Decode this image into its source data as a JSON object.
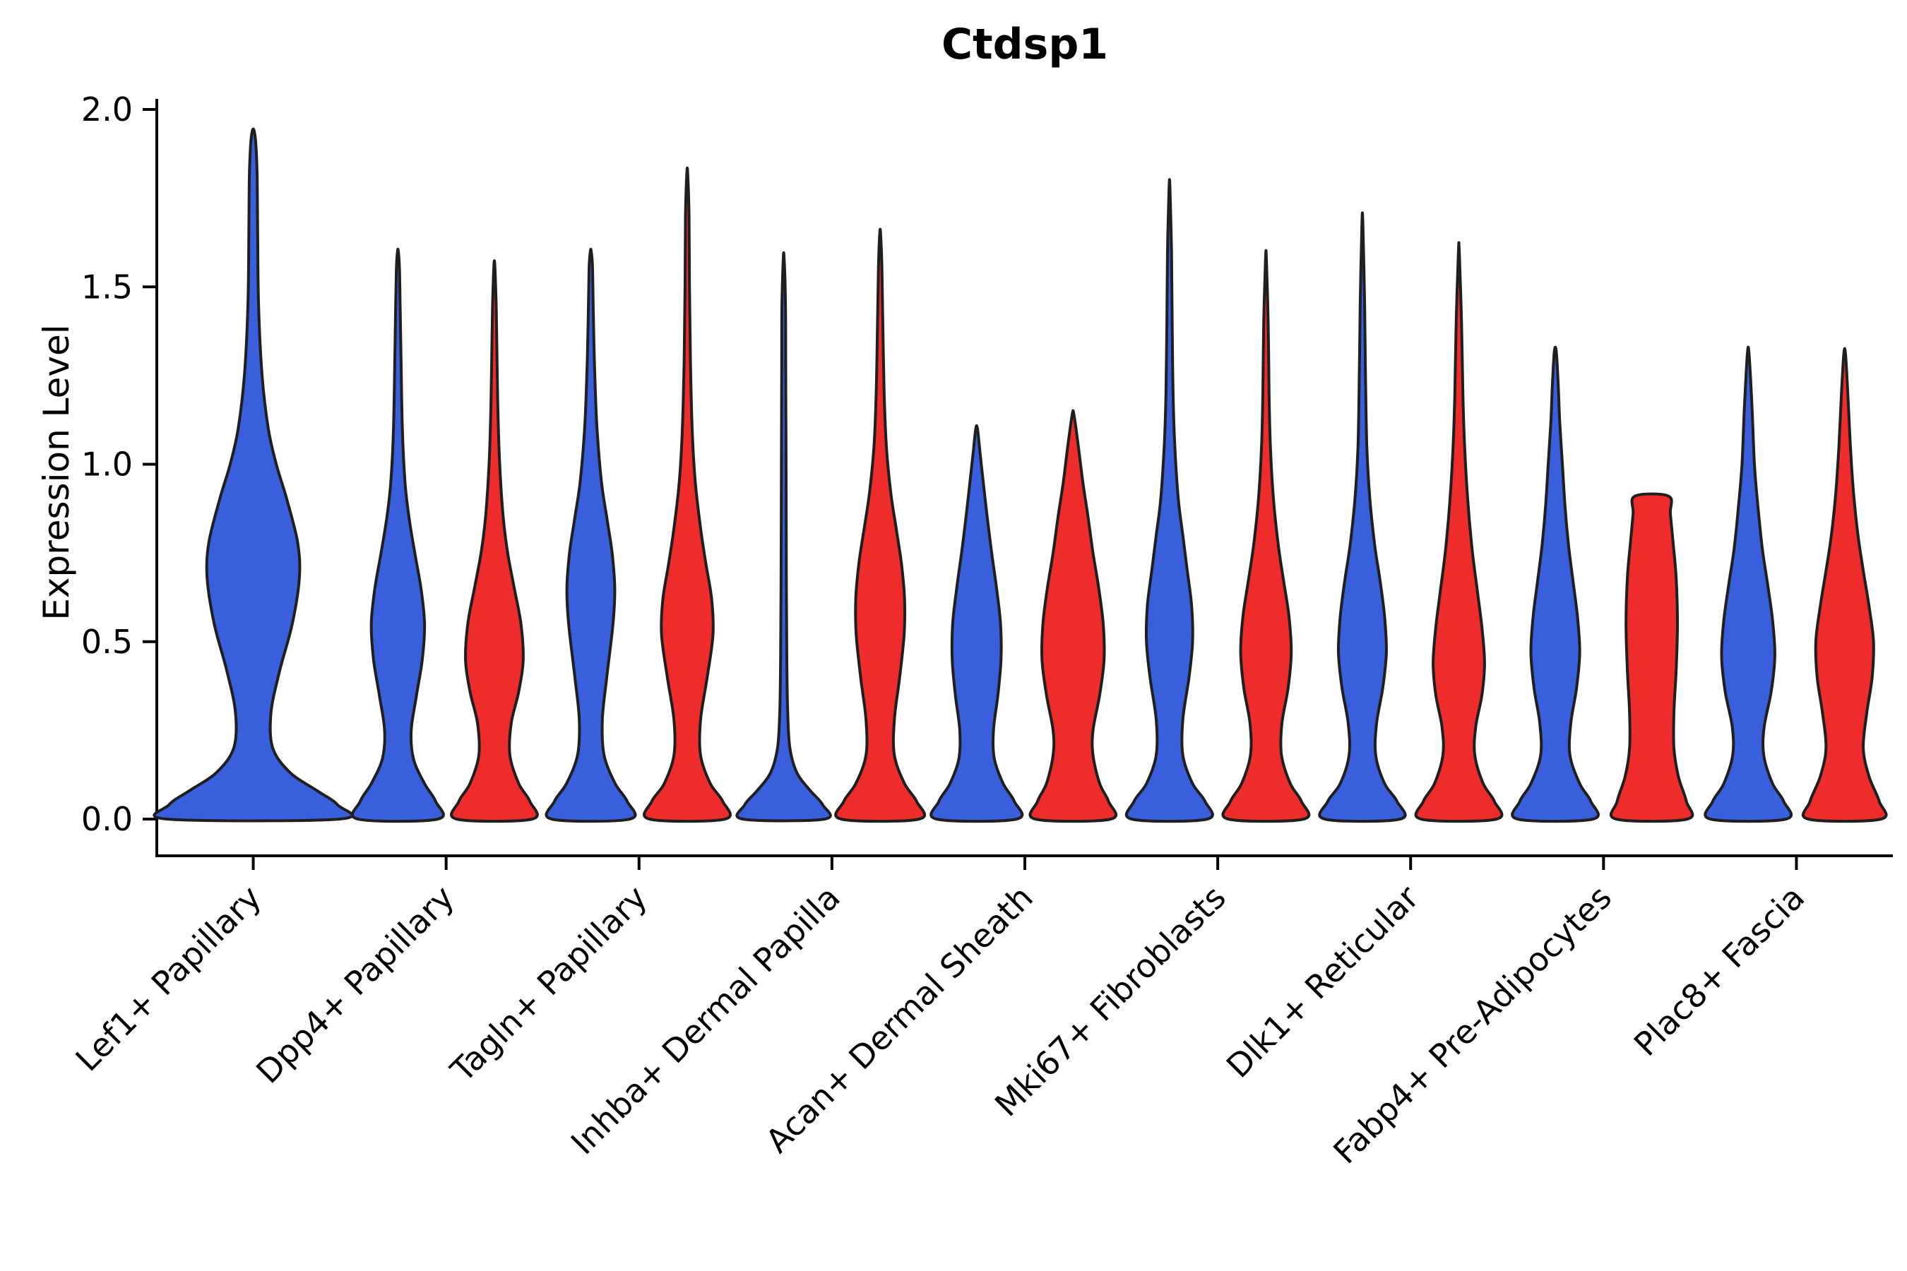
{
  "chart_data": {
    "type": "violin",
    "title": "Ctdsp1",
    "ylabel": "Expression Level",
    "xlabel": "",
    "ylim": [
      0,
      2.0
    ],
    "yticks": [
      "0.0",
      "0.5",
      "1.0",
      "1.5",
      "2.0"
    ],
    "ytick_values": [
      0,
      0.5,
      1.0,
      1.5,
      2.0
    ],
    "grid": false,
    "legend": "none",
    "colors": {
      "blue": "#3A5FDC",
      "red": "#EE2C2C",
      "outline": "#1F1F1F",
      "axis": "#000000"
    },
    "categories": [
      "Lef1+ Papillary",
      "Dpp4+ Papillary",
      "Tagln+ Papillary",
      "Inhba+ Dermal Papilla",
      "Acan+ Dermal Sheath",
      "Mki67+ Fibroblasts",
      "Dlk1+ Reticular",
      "Fabp4+ Pre-Adipocytes",
      "Plac8+ Fascia"
    ],
    "violins": [
      {
        "cat": 0,
        "group": "blue",
        "max": 1.94,
        "profile": [
          [
            0,
            0.97
          ],
          [
            0.04,
            0.95
          ],
          [
            0.08,
            0.72
          ],
          [
            0.13,
            0.42
          ],
          [
            0.2,
            0.22
          ],
          [
            0.3,
            0.2
          ],
          [
            0.42,
            0.3
          ],
          [
            0.55,
            0.44
          ],
          [
            0.68,
            0.52
          ],
          [
            0.78,
            0.5
          ],
          [
            0.9,
            0.38
          ],
          [
            1.0,
            0.26
          ],
          [
            1.1,
            0.17
          ],
          [
            1.25,
            0.1
          ],
          [
            1.45,
            0.06
          ],
          [
            1.65,
            0.05
          ],
          [
            1.8,
            0.045
          ],
          [
            1.9,
            0.03
          ],
          [
            1.94,
            0.01
          ]
        ]
      },
      {
        "cat": 1,
        "group": "blue",
        "max": 1.6,
        "profile": [
          [
            0,
            0.9
          ],
          [
            0.05,
            0.85
          ],
          [
            0.1,
            0.6
          ],
          [
            0.17,
            0.35
          ],
          [
            0.25,
            0.3
          ],
          [
            0.35,
            0.42
          ],
          [
            0.45,
            0.55
          ],
          [
            0.55,
            0.6
          ],
          [
            0.65,
            0.52
          ],
          [
            0.75,
            0.38
          ],
          [
            0.85,
            0.25
          ],
          [
            0.95,
            0.16
          ],
          [
            1.1,
            0.1
          ],
          [
            1.3,
            0.07
          ],
          [
            1.45,
            0.05
          ],
          [
            1.55,
            0.035
          ],
          [
            1.6,
            0.01
          ]
        ]
      },
      {
        "cat": 1,
        "group": "red",
        "max": 1.56,
        "profile": [
          [
            0,
            0.85
          ],
          [
            0.05,
            0.8
          ],
          [
            0.1,
            0.55
          ],
          [
            0.18,
            0.35
          ],
          [
            0.27,
            0.38
          ],
          [
            0.36,
            0.55
          ],
          [
            0.45,
            0.65
          ],
          [
            0.55,
            0.6
          ],
          [
            0.65,
            0.45
          ],
          [
            0.75,
            0.3
          ],
          [
            0.85,
            0.2
          ],
          [
            1.0,
            0.12
          ],
          [
            1.15,
            0.08
          ],
          [
            1.3,
            0.06
          ],
          [
            1.45,
            0.04
          ],
          [
            1.56,
            0.01
          ]
        ]
      },
      {
        "cat": 2,
        "group": "blue",
        "max": 1.6,
        "profile": [
          [
            0,
            0.88
          ],
          [
            0.05,
            0.82
          ],
          [
            0.1,
            0.55
          ],
          [
            0.18,
            0.3
          ],
          [
            0.28,
            0.26
          ],
          [
            0.4,
            0.36
          ],
          [
            0.55,
            0.5
          ],
          [
            0.65,
            0.54
          ],
          [
            0.75,
            0.48
          ],
          [
            0.85,
            0.36
          ],
          [
            0.95,
            0.24
          ],
          [
            1.1,
            0.14
          ],
          [
            1.25,
            0.09
          ],
          [
            1.4,
            0.06
          ],
          [
            1.55,
            0.04
          ],
          [
            1.6,
            0.01
          ]
        ]
      },
      {
        "cat": 2,
        "group": "red",
        "max": 1.82,
        "profile": [
          [
            0,
            0.85
          ],
          [
            0.05,
            0.8
          ],
          [
            0.1,
            0.52
          ],
          [
            0.18,
            0.3
          ],
          [
            0.28,
            0.3
          ],
          [
            0.4,
            0.45
          ],
          [
            0.52,
            0.58
          ],
          [
            0.62,
            0.55
          ],
          [
            0.72,
            0.42
          ],
          [
            0.82,
            0.3
          ],
          [
            0.95,
            0.18
          ],
          [
            1.1,
            0.11
          ],
          [
            1.3,
            0.07
          ],
          [
            1.5,
            0.05
          ],
          [
            1.7,
            0.04
          ],
          [
            1.82,
            0.01
          ]
        ]
      },
      {
        "cat": 3,
        "group": "blue",
        "max": 1.58,
        "profile": [
          [
            0,
            0.92
          ],
          [
            0.04,
            0.88
          ],
          [
            0.08,
            0.6
          ],
          [
            0.13,
            0.3
          ],
          [
            0.2,
            0.14
          ],
          [
            0.3,
            0.09
          ],
          [
            0.45,
            0.07
          ],
          [
            0.65,
            0.06
          ],
          [
            0.9,
            0.055
          ],
          [
            1.1,
            0.05
          ],
          [
            1.3,
            0.045
          ],
          [
            1.45,
            0.04
          ],
          [
            1.58,
            0.01
          ]
        ]
      },
      {
        "cat": 3,
        "group": "red",
        "max": 1.65,
        "profile": [
          [
            0,
            0.88
          ],
          [
            0.05,
            0.82
          ],
          [
            0.1,
            0.55
          ],
          [
            0.18,
            0.32
          ],
          [
            0.28,
            0.32
          ],
          [
            0.4,
            0.44
          ],
          [
            0.52,
            0.54
          ],
          [
            0.62,
            0.55
          ],
          [
            0.72,
            0.48
          ],
          [
            0.82,
            0.36
          ],
          [
            0.92,
            0.24
          ],
          [
            1.05,
            0.14
          ],
          [
            1.2,
            0.09
          ],
          [
            1.4,
            0.06
          ],
          [
            1.55,
            0.04
          ],
          [
            1.65,
            0.01
          ]
        ]
      },
      {
        "cat": 4,
        "group": "blue",
        "max": 1.1,
        "profile": [
          [
            0,
            0.9
          ],
          [
            0.05,
            0.85
          ],
          [
            0.1,
            0.6
          ],
          [
            0.17,
            0.4
          ],
          [
            0.25,
            0.38
          ],
          [
            0.35,
            0.48
          ],
          [
            0.45,
            0.55
          ],
          [
            0.55,
            0.54
          ],
          [
            0.65,
            0.45
          ],
          [
            0.75,
            0.34
          ],
          [
            0.85,
            0.24
          ],
          [
            0.95,
            0.15
          ],
          [
            1.03,
            0.08
          ],
          [
            1.1,
            0.02
          ]
        ]
      },
      {
        "cat": 4,
        "group": "red",
        "max": 1.14,
        "profile": [
          [
            0,
            0.85
          ],
          [
            0.05,
            0.8
          ],
          [
            0.1,
            0.6
          ],
          [
            0.18,
            0.45
          ],
          [
            0.25,
            0.45
          ],
          [
            0.35,
            0.6
          ],
          [
            0.45,
            0.7
          ],
          [
            0.55,
            0.68
          ],
          [
            0.65,
            0.58
          ],
          [
            0.75,
            0.45
          ],
          [
            0.85,
            0.34
          ],
          [
            0.95,
            0.22
          ],
          [
            1.05,
            0.12
          ],
          [
            1.14,
            0.02
          ]
        ]
      },
      {
        "cat": 5,
        "group": "blue",
        "max": 1.78,
        "profile": [
          [
            0,
            0.85
          ],
          [
            0.05,
            0.8
          ],
          [
            0.1,
            0.52
          ],
          [
            0.18,
            0.3
          ],
          [
            0.28,
            0.3
          ],
          [
            0.4,
            0.44
          ],
          [
            0.5,
            0.52
          ],
          [
            0.6,
            0.5
          ],
          [
            0.7,
            0.4
          ],
          [
            0.8,
            0.3
          ],
          [
            0.9,
            0.2
          ],
          [
            1.05,
            0.12
          ],
          [
            1.2,
            0.08
          ],
          [
            1.4,
            0.06
          ],
          [
            1.6,
            0.045
          ],
          [
            1.78,
            0.01
          ]
        ]
      },
      {
        "cat": 5,
        "group": "red",
        "max": 1.58,
        "profile": [
          [
            0,
            0.85
          ],
          [
            0.05,
            0.8
          ],
          [
            0.1,
            0.55
          ],
          [
            0.18,
            0.35
          ],
          [
            0.27,
            0.36
          ],
          [
            0.37,
            0.5
          ],
          [
            0.47,
            0.57
          ],
          [
            0.57,
            0.52
          ],
          [
            0.67,
            0.4
          ],
          [
            0.77,
            0.28
          ],
          [
            0.9,
            0.17
          ],
          [
            1.05,
            0.1
          ],
          [
            1.2,
            0.07
          ],
          [
            1.4,
            0.05
          ],
          [
            1.58,
            0.01
          ]
        ]
      },
      {
        "cat": 6,
        "group": "blue",
        "max": 1.68,
        "profile": [
          [
            0,
            0.85
          ],
          [
            0.05,
            0.78
          ],
          [
            0.1,
            0.5
          ],
          [
            0.18,
            0.3
          ],
          [
            0.27,
            0.32
          ],
          [
            0.37,
            0.46
          ],
          [
            0.47,
            0.54
          ],
          [
            0.57,
            0.5
          ],
          [
            0.67,
            0.4
          ],
          [
            0.77,
            0.28
          ],
          [
            0.9,
            0.17
          ],
          [
            1.05,
            0.1
          ],
          [
            1.25,
            0.07
          ],
          [
            1.45,
            0.05
          ],
          [
            1.68,
            0.01
          ]
        ]
      },
      {
        "cat": 6,
        "group": "red",
        "max": 1.6,
        "profile": [
          [
            0,
            0.85
          ],
          [
            0.05,
            0.8
          ],
          [
            0.1,
            0.55
          ],
          [
            0.18,
            0.36
          ],
          [
            0.26,
            0.38
          ],
          [
            0.35,
            0.52
          ],
          [
            0.44,
            0.58
          ],
          [
            0.54,
            0.52
          ],
          [
            0.64,
            0.42
          ],
          [
            0.76,
            0.3
          ],
          [
            0.9,
            0.2
          ],
          [
            1.05,
            0.13
          ],
          [
            1.2,
            0.09
          ],
          [
            1.4,
            0.06
          ],
          [
            1.6,
            0.01
          ]
        ]
      },
      {
        "cat": 7,
        "group": "blue",
        "max": 1.32,
        "profile": [
          [
            0,
            0.85
          ],
          [
            0.05,
            0.8
          ],
          [
            0.1,
            0.55
          ],
          [
            0.18,
            0.33
          ],
          [
            0.27,
            0.35
          ],
          [
            0.37,
            0.48
          ],
          [
            0.47,
            0.55
          ],
          [
            0.57,
            0.5
          ],
          [
            0.67,
            0.4
          ],
          [
            0.77,
            0.3
          ],
          [
            0.88,
            0.22
          ],
          [
            1.0,
            0.16
          ],
          [
            1.12,
            0.1
          ],
          [
            1.24,
            0.06
          ],
          [
            1.32,
            0.02
          ]
        ]
      },
      {
        "cat": 7,
        "group": "red",
        "max": 0.91,
        "profile": [
          [
            0,
            0.8
          ],
          [
            0.05,
            0.78
          ],
          [
            0.12,
            0.6
          ],
          [
            0.2,
            0.5
          ],
          [
            0.3,
            0.5
          ],
          [
            0.42,
            0.55
          ],
          [
            0.55,
            0.58
          ],
          [
            0.68,
            0.55
          ],
          [
            0.78,
            0.48
          ],
          [
            0.86,
            0.42
          ],
          [
            0.91,
            0.38
          ]
        ]
      },
      {
        "cat": 8,
        "group": "blue",
        "max": 1.31,
        "profile": [
          [
            0,
            0.85
          ],
          [
            0.05,
            0.8
          ],
          [
            0.1,
            0.55
          ],
          [
            0.18,
            0.35
          ],
          [
            0.26,
            0.36
          ],
          [
            0.36,
            0.52
          ],
          [
            0.46,
            0.6
          ],
          [
            0.56,
            0.55
          ],
          [
            0.66,
            0.44
          ],
          [
            0.76,
            0.32
          ],
          [
            0.88,
            0.22
          ],
          [
            1.0,
            0.14
          ],
          [
            1.15,
            0.09
          ],
          [
            1.31,
            0.02
          ]
        ]
      },
      {
        "cat": 8,
        "group": "red",
        "max": 1.31,
        "profile": [
          [
            0,
            0.82
          ],
          [
            0.05,
            0.78
          ],
          [
            0.12,
            0.55
          ],
          [
            0.2,
            0.42
          ],
          [
            0.3,
            0.5
          ],
          [
            0.4,
            0.62
          ],
          [
            0.5,
            0.65
          ],
          [
            0.6,
            0.55
          ],
          [
            0.7,
            0.42
          ],
          [
            0.8,
            0.3
          ],
          [
            0.92,
            0.2
          ],
          [
            1.05,
            0.13
          ],
          [
            1.18,
            0.08
          ],
          [
            1.31,
            0.02
          ]
        ]
      }
    ]
  }
}
